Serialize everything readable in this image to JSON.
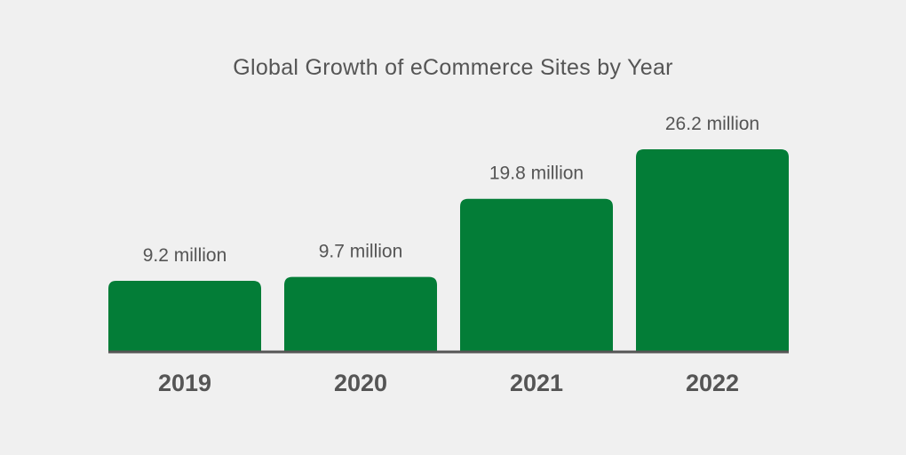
{
  "chart_data": {
    "type": "bar",
    "title": "Global Growth of eCommerce Sites by Year",
    "xlabel": "",
    "ylabel": "",
    "categories": [
      "2019",
      "2020",
      "2021",
      "2022"
    ],
    "values": [
      9.2,
      9.7,
      19.8,
      26.2
    ],
    "data_labels": [
      "9.2 million",
      "9.7 million",
      "19.8 million",
      "26.2 million"
    ],
    "unit": "million",
    "ylim": [
      0,
      26.2
    ],
    "grid": false,
    "legend": "none",
    "colors": {
      "bar": "#037d37",
      "baseline": "#555555",
      "text": "#555555",
      "background": "#f0f0f0"
    }
  }
}
